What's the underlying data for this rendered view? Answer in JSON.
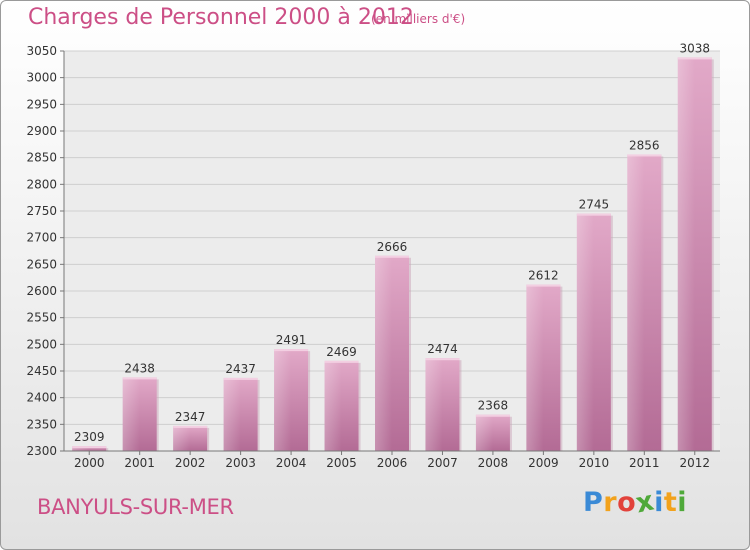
{
  "title": "Charges de Personnel 2000 à 2012",
  "subtitle": "(en milliers d'€)",
  "place": "BANYULS-SUR-MER",
  "logo": {
    "letters": [
      "P",
      "r",
      "o",
      "x",
      "i",
      "t",
      "i"
    ],
    "colors": [
      "#3a8ad6",
      "#f2a21c",
      "#e2423b",
      "#4fa93a",
      "#3a8ad6",
      "#f2a21c",
      "#4fa93a"
    ]
  },
  "chart_data": {
    "type": "bar",
    "title": "Charges de Personnel 2000 à 2012",
    "categories": [
      "2000",
      "2001",
      "2002",
      "2003",
      "2004",
      "2005",
      "2006",
      "2007",
      "2008",
      "2009",
      "2010",
      "2011",
      "2012"
    ],
    "values": [
      2309,
      2438,
      2347,
      2437,
      2491,
      2469,
      2666,
      2474,
      2368,
      2612,
      2745,
      2856,
      3038
    ],
    "ylim": [
      2300,
      3050
    ],
    "yticks": [
      2300,
      2350,
      2400,
      2450,
      2500,
      2550,
      2600,
      2650,
      2700,
      2750,
      2800,
      2850,
      2900,
      2950,
      3000,
      3050
    ],
    "xlabel": "",
    "ylabel": "",
    "grid": true,
    "bar_color": "#d98bb3"
  }
}
